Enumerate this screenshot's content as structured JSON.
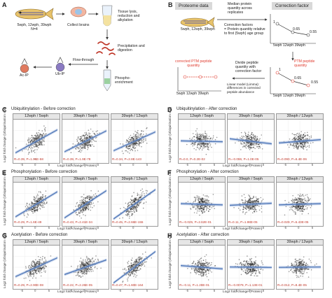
{
  "panel_a": {
    "letter": "A",
    "fish_label": "5wph, 12wph, 39wph\nN=4",
    "collect": "Collect brains",
    "lysis": "Tissue lysis,\nreduction and\nalkylation",
    "precip": "Precipitation and\ndigestion",
    "phospho": "Phospho-\nenrichment",
    "flow": "Flow-through",
    "ub": "Ub-IP",
    "ac": "Ac-IP"
  },
  "panel_b": {
    "letter": "B",
    "proteome": "Proteome data",
    "median": "Median protein\nquantity across\nreplicates",
    "fish_label": "5wph, 12wph, 39wph",
    "cf_formula": "Correction factors\n= Protein quantity relative\nto first (5wph) age group",
    "cf_title": "Correction factor",
    "cf_values": [
      "1",
      "0.65",
      "0.55"
    ],
    "cf_x": "5wph 12wph 39wph",
    "corrected": "corrected PTM peptide\nquantity",
    "divide": "Divide peptide\nquantity with\ncorrection factor",
    "ptm": "PTM peptide\nquantity",
    "linear": "Linear model (Limma):\ndifferences in corrected\npeptide abundance",
    "x2": "5wph 12wph 39wph",
    "x3": "5wph 12wph 39wph",
    "ptm_values": [
      "1",
      "0.65",
      "0.55"
    ]
  },
  "colors": {
    "points": "#1a1a1a",
    "fit": "#4a73b5",
    "stat": "#c0392b",
    "strip": "#e6e6e6",
    "highlight": "#e03c2f"
  },
  "ylabel": "Log2 fold change\n(Ubiquitination site)",
  "xlabel": "Log2 fold change (Protein)",
  "sections": [
    {
      "letter": "C",
      "title": "Ubiquitinylation - Before correction",
      "panels": [
        {
          "strip": "12wph / 5wph",
          "stat": "R=0.39, P=1.96E-58",
          "slope": 0.55
        },
        {
          "strip": "39wph / 5wph",
          "stat": "R=0.39, P=1.9E-78",
          "slope": 0.5
        },
        {
          "strip": "39wph / 12wph",
          "stat": "R=0.34, P=2.8E-143",
          "slope": 0.45
        }
      ]
    },
    {
      "letter": "D",
      "title": "Ubiquitinylation - After correction",
      "panels": [
        {
          "strip": "12wph / 5wph",
          "stat": "R=0.0, P=0.2E-02",
          "slope": -0.02
        },
        {
          "strip": "39wph / 5wph",
          "stat": "R=-0.096, P=1.0E-05",
          "slope": -0.12
        },
        {
          "strip": "39wph / 12wph",
          "stat": "R=0.090, P=6.4E-06",
          "slope": 0.08
        }
      ]
    },
    {
      "letter": "E",
      "title": "Phosphorylation - Before correction",
      "panels": [
        {
          "strip": "12wph / 5wph",
          "stat": "R=0.29, P=1.6E-49",
          "slope": 0.6
        },
        {
          "strip": "39wph / 5wph",
          "stat": "R=0.43, P=2.41E-34",
          "slope": 0.65
        },
        {
          "strip": "39wph / 12wph",
          "stat": "R=0.45, P=2.66E-155",
          "slope": 0.7
        }
      ]
    },
    {
      "letter": "F",
      "title": "Phosphorylation - After correction",
      "panels": [
        {
          "strip": "12wph / 5wph",
          "stat": "R=-0.025, P=2.62E-01",
          "slope": -0.03
        },
        {
          "strip": "39wph / 5wph",
          "stat": "R=0.11, P=1.98E-05",
          "slope": 0.05
        },
        {
          "strip": "39wph / 12wph",
          "stat": "R=0.029, P=5.43E-05",
          "slope": 0.03
        }
      ]
    },
    {
      "letter": "G",
      "title": "Acetylation - Before correction",
      "panels": [
        {
          "strip": "12wph / 5wph",
          "stat": "R=0.29, P=2.90E-08",
          "slope": 0.45
        },
        {
          "strip": "39wph / 5wph",
          "stat": "R=0.22, P=2.26E-05",
          "slope": 0.35
        },
        {
          "strip": "39wph / 12wph",
          "stat": "R=0.47, P=1.60E-164",
          "slope": 0.75
        }
      ]
    },
    {
      "letter": "H",
      "title": "Acetylation - After correction",
      "panels": [
        {
          "strip": "12wph / 5wph",
          "stat": "R=-0.11, P=1.28E-01",
          "slope": -0.08
        },
        {
          "strip": "39wph / 5wph",
          "stat": "R=-0.0079, P=1.13E-01",
          "slope": -0.01
        },
        {
          "strip": "39wph / 12wph",
          "stat": "R=0.014, P=8.4E-05",
          "slope": 0.01
        }
      ]
    }
  ],
  "x_ticks": [
    "-5",
    "0",
    "5"
  ]
}
